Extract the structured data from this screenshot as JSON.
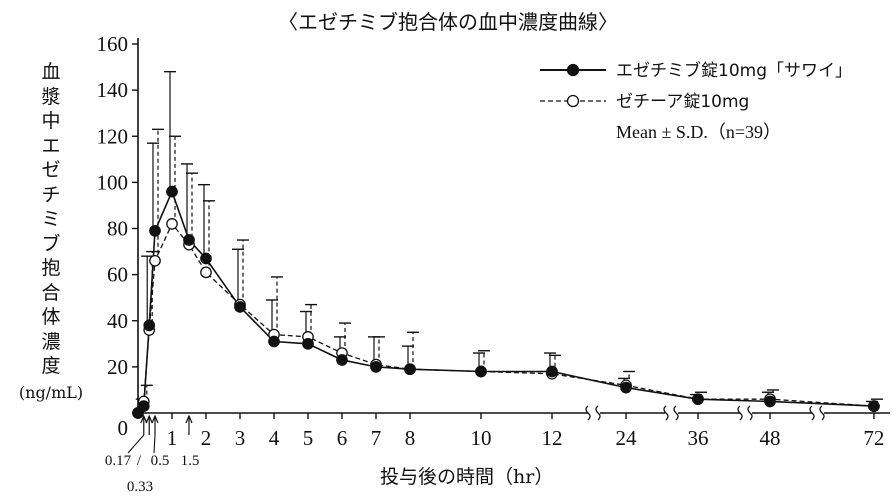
{
  "chart_data": {
    "type": "line",
    "title": "〈エゼチミブ抱合体の血中濃度曲線〉",
    "ylabel_main": "血漿中エゼチミブ抱合体濃度",
    "ylabel_unit": "(ng/mL)",
    "xlabel": "投与後の時間（hr）",
    "ylim": [
      0,
      160
    ],
    "y_ticks": [
      0,
      20,
      40,
      60,
      80,
      100,
      120,
      140,
      160
    ],
    "x_axis_segments": [
      "0–12 hr (linear)",
      "24",
      "36",
      "48",
      "72"
    ],
    "x_ticks_main": [
      "0",
      "1",
      "2",
      "3",
      "4",
      "5",
      "6",
      "7",
      "8",
      "10",
      "12",
      "24",
      "36",
      "48",
      "72"
    ],
    "x_ticks_small": [
      "0.17",
      "0.33",
      "0.5",
      "1.5"
    ],
    "grid": false,
    "legend_position": "top-right",
    "x": [
      0,
      0.17,
      0.33,
      0.5,
      1,
      1.5,
      2,
      3,
      4,
      5,
      6,
      7,
      8,
      10,
      12,
      24,
      36,
      48,
      72
    ],
    "series": [
      {
        "name": "エゼチミブ錠10mg「サワイ」",
        "marker": "filled-circle",
        "line": "solid",
        "values": [
          0,
          3,
          38,
          79,
          96,
          75,
          67,
          46,
          31,
          30,
          23,
          20,
          19,
          18,
          18,
          11,
          6,
          5,
          3
        ],
        "sd_upper": [
          0,
          6,
          68,
          117,
          148,
          108,
          99,
          71,
          49,
          44,
          33,
          33,
          29,
          26,
          26,
          15,
          8,
          9,
          5
        ]
      },
      {
        "name": "ゼチーア錠10mg",
        "marker": "open-circle",
        "line": "dashed",
        "values": [
          0,
          5,
          36,
          66,
          82,
          73,
          61,
          47,
          34,
          33,
          26,
          21,
          19,
          18,
          17,
          12,
          6,
          6,
          3
        ],
        "sd_upper": [
          0,
          12,
          70,
          123,
          120,
          104,
          92,
          75,
          59,
          47,
          39,
          33,
          35,
          27,
          25,
          18,
          9,
          10,
          6
        ]
      }
    ],
    "legend_note": "Mean ± S.D.（n=39）"
  }
}
